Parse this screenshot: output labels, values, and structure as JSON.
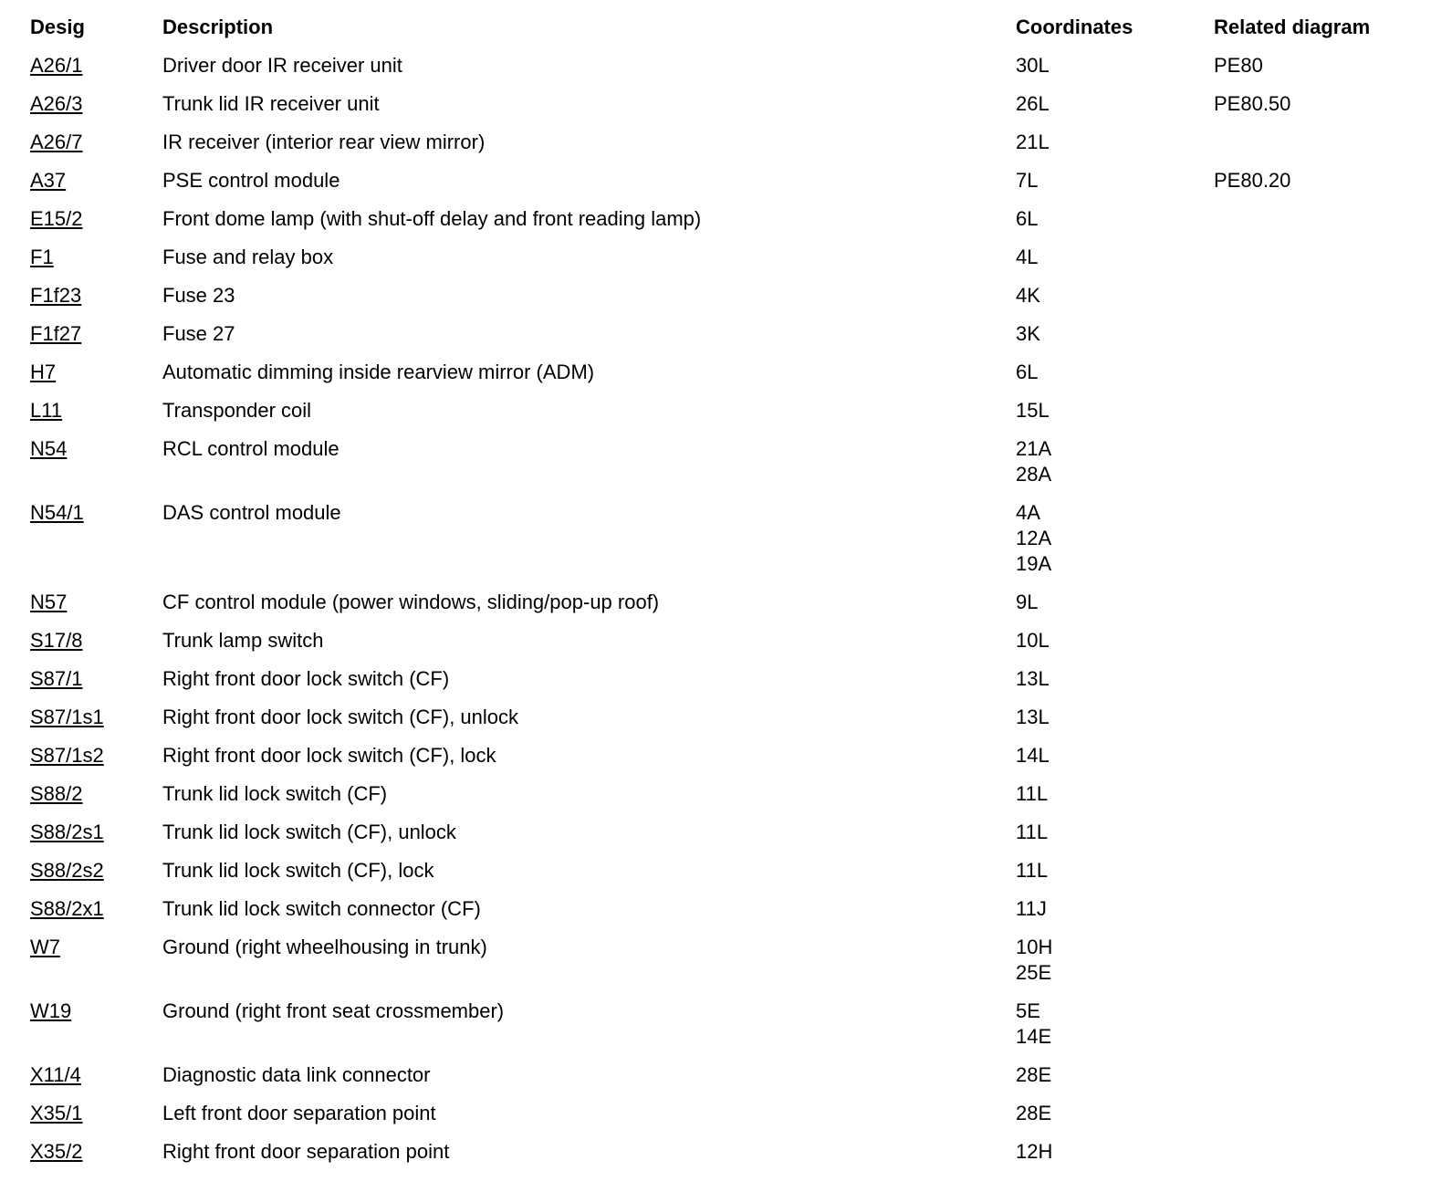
{
  "table": {
    "headers": {
      "desig": "Desig",
      "description": "Description",
      "coordinates": "Coordinates",
      "related": "Related diagram"
    },
    "rows": [
      {
        "desig": "A26/1",
        "description": "Driver door IR receiver unit",
        "coordinates": [
          "30L"
        ],
        "related": "PE80"
      },
      {
        "desig": "A26/3",
        "description": "Trunk lid IR receiver unit",
        "coordinates": [
          "26L"
        ],
        "related": "PE80.50"
      },
      {
        "desig": "A26/7",
        "description": "IR receiver (interior rear view mirror)",
        "coordinates": [
          "21L"
        ],
        "related": ""
      },
      {
        "desig": "A37",
        "description": "PSE control module",
        "coordinates": [
          "7L"
        ],
        "related": "PE80.20"
      },
      {
        "desig": "E15/2",
        "description": "Front dome lamp (with shut-off delay and front reading lamp)",
        "coordinates": [
          "6L"
        ],
        "related": ""
      },
      {
        "desig": "F1",
        "description": "Fuse and relay box",
        "coordinates": [
          "4L"
        ],
        "related": ""
      },
      {
        "desig": "F1f23",
        "description": "Fuse 23",
        "coordinates": [
          "4K"
        ],
        "related": ""
      },
      {
        "desig": "F1f27",
        "description": "Fuse 27",
        "coordinates": [
          "3K"
        ],
        "related": ""
      },
      {
        "desig": "H7",
        "description": "Automatic dimming inside rearview mirror (ADM)",
        "coordinates": [
          "6L"
        ],
        "related": ""
      },
      {
        "desig": "L11",
        "description": "Transponder coil",
        "coordinates": [
          "15L"
        ],
        "related": ""
      },
      {
        "desig": "N54",
        "description": "RCL control module",
        "coordinates": [
          "21A",
          "28A"
        ],
        "related": ""
      },
      {
        "desig": "N54/1",
        "description": "DAS control module",
        "coordinates": [
          "4A",
          "12A",
          "19A"
        ],
        "related": ""
      },
      {
        "desig": "N57",
        "description": "CF control module (power windows, sliding/pop-up roof)",
        "coordinates": [
          "9L"
        ],
        "related": ""
      },
      {
        "desig": "S17/8",
        "description": "Trunk lamp switch",
        "coordinates": [
          "10L"
        ],
        "related": ""
      },
      {
        "desig": "S87/1",
        "description": "Right front door lock switch (CF)",
        "coordinates": [
          "13L"
        ],
        "related": ""
      },
      {
        "desig": "S87/1s1",
        "description": "Right front door lock switch (CF), unlock",
        "coordinates": [
          "13L"
        ],
        "related": ""
      },
      {
        "desig": "S87/1s2",
        "description": "Right front door lock switch (CF), lock",
        "coordinates": [
          "14L"
        ],
        "related": ""
      },
      {
        "desig": "S88/2",
        "description": "Trunk lid lock switch (CF)",
        "coordinates": [
          "11L"
        ],
        "related": ""
      },
      {
        "desig": "S88/2s1",
        "description": "Trunk lid lock switch (CF), unlock",
        "coordinates": [
          "11L"
        ],
        "related": ""
      },
      {
        "desig": "S88/2s2",
        "description": "Trunk lid lock switch (CF), lock",
        "coordinates": [
          "11L"
        ],
        "related": ""
      },
      {
        "desig": "S88/2x1",
        "description": "Trunk lid lock switch connector (CF)",
        "coordinates": [
          "11J"
        ],
        "related": ""
      },
      {
        "desig": "W7",
        "description": "Ground (right wheelhousing in trunk)",
        "coordinates": [
          "10H",
          "25E"
        ],
        "related": ""
      },
      {
        "desig": "W19",
        "description": "Ground (right front seat crossmember)",
        "coordinates": [
          "5E",
          "14E"
        ],
        "related": ""
      },
      {
        "desig": "X11/4",
        "description": "Diagnostic data link connector",
        "coordinates": [
          "28E"
        ],
        "related": ""
      },
      {
        "desig": "X35/1",
        "description": "Left front door separation point",
        "coordinates": [
          "28E"
        ],
        "related": ""
      },
      {
        "desig": "X35/2",
        "description": "Right front door separation point",
        "coordinates": [
          "12H"
        ],
        "related": ""
      }
    ]
  }
}
